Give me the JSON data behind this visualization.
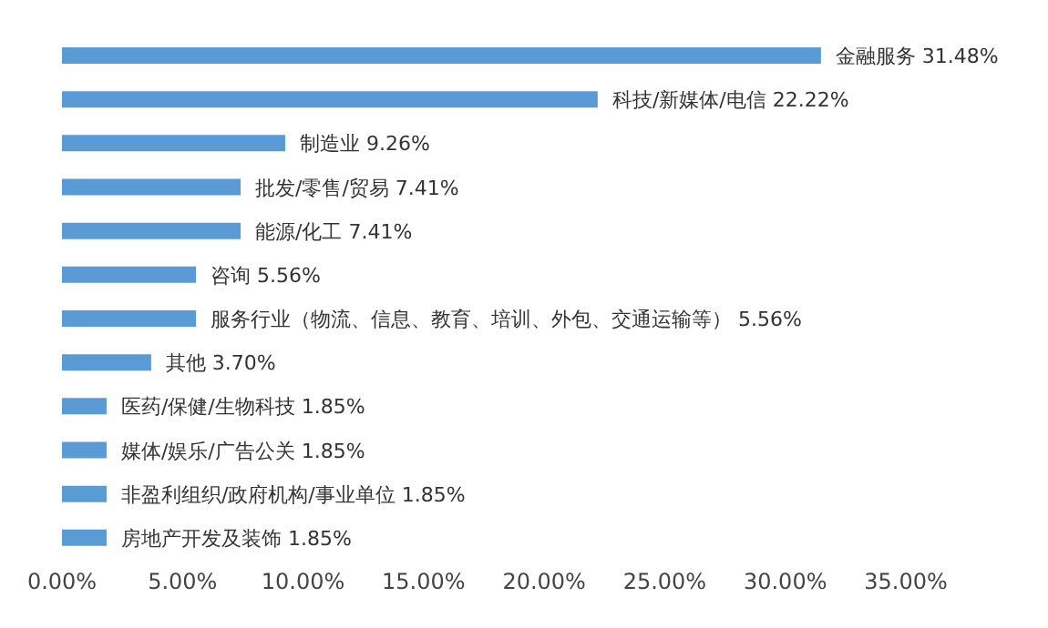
{
  "chart_data": {
    "type": "bar",
    "orientation": "horizontal",
    "categories": [
      "金融服务",
      "科技/新媒体/电信",
      "制造业",
      "批发/零售/贸易",
      "能源/化工",
      "咨询",
      "服务行业（物流、信息、教育、培训、外包、交通运输等）",
      "其他",
      "医药/保健/生物科技",
      "媒体/娱乐/广告公关",
      "非盈利组织/政府机构/事业单位",
      "房地产开发及装饰"
    ],
    "values": [
      31.48,
      22.22,
      9.26,
      7.41,
      7.41,
      5.56,
      5.56,
      3.7,
      1.85,
      1.85,
      1.85,
      1.85
    ],
    "value_labels": [
      "31.48%",
      "22.22%",
      "9.26%",
      "7.41%",
      "7.41%",
      "5.56%",
      "5.56%",
      "3.70%",
      "1.85%",
      "1.85%",
      "1.85%",
      "1.85%"
    ],
    "color": "#5b9bd5",
    "xlim": [
      0,
      35
    ],
    "xticks": [
      {
        "value": 0,
        "label": "0.00%"
      },
      {
        "value": 5,
        "label": "5.00%"
      },
      {
        "value": 10,
        "label": "10.00%"
      },
      {
        "value": 15,
        "label": "15.00%"
      },
      {
        "value": 20,
        "label": "20.00%"
      },
      {
        "value": 25,
        "label": "25.00%"
      },
      {
        "value": 30,
        "label": "30.00%"
      },
      {
        "value": 35,
        "label": "35.00%"
      }
    ],
    "tick_labels": "x",
    "grid": false,
    "legend": false
  }
}
